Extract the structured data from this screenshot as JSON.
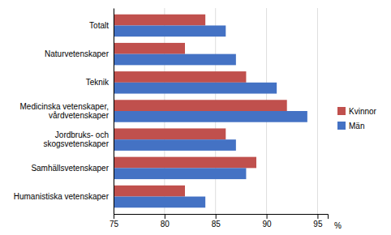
{
  "chart_data": {
    "type": "bar",
    "orientation": "horizontal",
    "categories": [
      "Totalt",
      "Naturvetenskaper",
      "Teknik",
      "Medicinska vetenskaper,\nvårdvetenskaper",
      "Jordbruks- och\nskogsvetenskaper",
      "Samhällsvetenskaper",
      "Humanistiska vetenskaper"
    ],
    "series": [
      {
        "name": "Kvinnor",
        "color": "#C0504D",
        "values": [
          84,
          82,
          88,
          92,
          86,
          89,
          82
        ]
      },
      {
        "name": "Män",
        "color": "#4472C4",
        "values": [
          86,
          87,
          91,
          94,
          87,
          88,
          84
        ]
      }
    ],
    "xlim": [
      75,
      96
    ],
    "xticks": [
      75,
      80,
      85,
      90,
      95
    ],
    "xlabel": "%",
    "grid": true,
    "legend": "right"
  }
}
